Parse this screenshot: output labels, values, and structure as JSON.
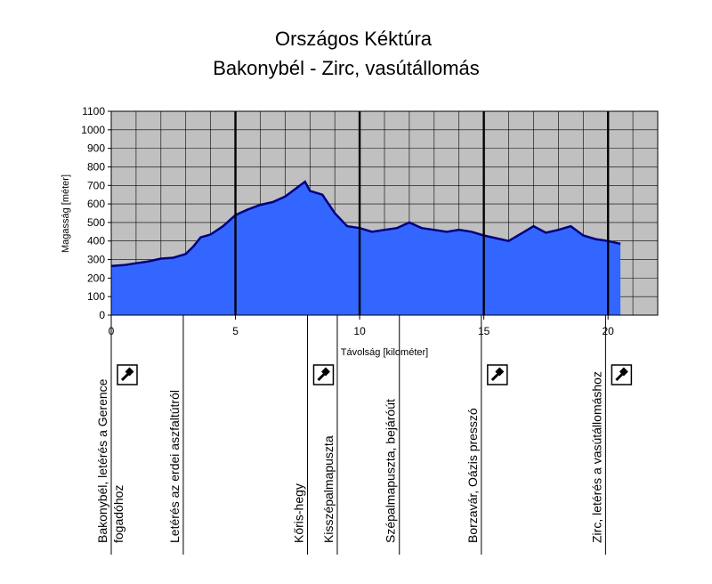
{
  "chart_data": {
    "type": "area",
    "title": "Országos Kéktúra",
    "subtitle": "Bakonybél - Zirc, vasútállomás",
    "xlabel": "Távolság [kilométer]",
    "ylabel": "Magasság [méter]",
    "xlim": [
      0,
      22
    ],
    "ylim": [
      0,
      1100
    ],
    "x_ticks": [
      0,
      5,
      10,
      15,
      20
    ],
    "y_ticks": [
      0,
      100,
      200,
      300,
      400,
      500,
      600,
      700,
      800,
      900,
      1000,
      1100
    ],
    "grid": true,
    "colors": {
      "area": "#3366ff",
      "line": "#000080",
      "plot_bg": "#c0c0c0"
    },
    "series": [
      {
        "x": [
          0,
          0.5,
          1,
          1.5,
          2,
          2.5,
          3,
          3.3,
          3.6,
          4,
          4.5,
          5,
          5.5,
          6,
          6.5,
          7,
          7.5,
          7.8,
          8,
          8.5,
          9,
          9.5,
          10,
          10.5,
          11,
          11.5,
          12,
          12.5,
          13,
          13.5,
          14,
          14.5,
          15,
          15.5,
          16,
          16.5,
          17,
          17.5,
          18,
          18.5,
          19,
          19.5,
          20,
          20.5
        ],
        "y": [
          265,
          270,
          280,
          290,
          305,
          310,
          330,
          370,
          420,
          435,
          480,
          540,
          570,
          595,
          610,
          640,
          690,
          720,
          670,
          650,
          550,
          480,
          470,
          450,
          460,
          470,
          500,
          470,
          460,
          450,
          460,
          450,
          430,
          415,
          400,
          440,
          480,
          445,
          460,
          480,
          430,
          410,
          400,
          385
        ]
      }
    ],
    "section_lines": [
      0,
      1,
      2,
      3,
      4,
      5,
      6,
      7,
      8,
      9,
      10,
      11,
      12,
      13,
      14,
      15,
      16,
      17,
      18,
      19,
      20,
      21,
      22
    ],
    "bold_lines": [
      5,
      10,
      15,
      20
    ]
  },
  "waypoints": [
    {
      "km": 0,
      "label": "Bakonybél, letérés a Gerence",
      "label2": "fogadóhoz",
      "stamp": true
    },
    {
      "km": 2.9,
      "label": "Letérés az erdei aszfaltútról",
      "label2": "",
      "stamp": false
    },
    {
      "km": 7.9,
      "label": "Kőris-hegy",
      "label2": "",
      "stamp": true
    },
    {
      "km": 9.1,
      "label": "Kisszépalmapuszta",
      "label2": "",
      "stamp": false
    },
    {
      "km": 11.6,
      "label": "Szépalmapuszta, bejáróút",
      "label2": "",
      "stamp": false
    },
    {
      "km": 14.9,
      "label": "Borzavár, Oázis presszó",
      "label2": "",
      "stamp": true
    },
    {
      "km": 19.9,
      "label": "Zirc, letérés a vasútállomáshoz",
      "label2": "",
      "stamp": true
    }
  ]
}
